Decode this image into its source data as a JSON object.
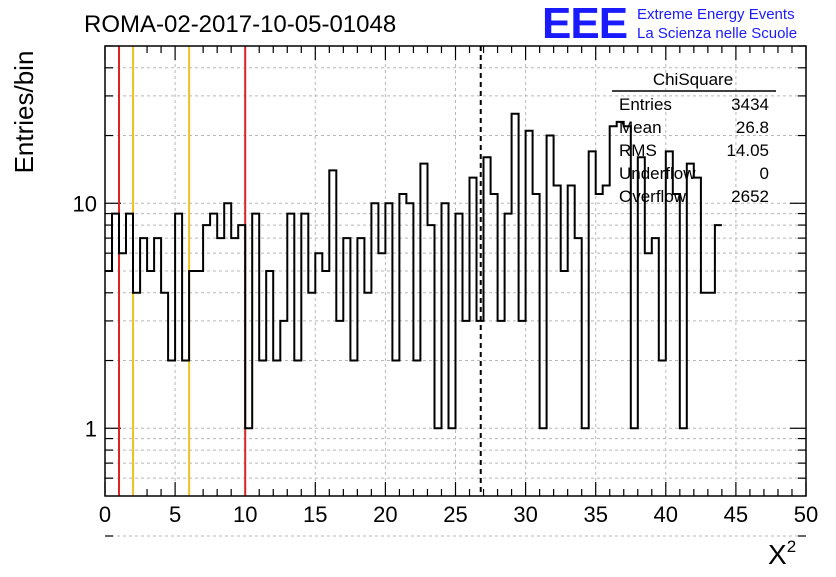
{
  "title": "ROMA-02-2017-10-05-01048",
  "logo": {
    "letters": "EEE",
    "line1": "Extreme Energy Events",
    "line2": "La Scienza nelle Scuole",
    "color": "#1a1aff"
  },
  "stats_box": {
    "title": "ChiSquare",
    "rows": [
      {
        "label": "Entries",
        "value": "3434"
      },
      {
        "label": "Mean",
        "value": "26.8"
      },
      {
        "label": "RMS",
        "value": "14.05"
      },
      {
        "label": "Underflow",
        "value": "0"
      },
      {
        "label": "Overflow",
        "value": "2652"
      }
    ]
  },
  "chart_data": {
    "type": "histogram",
    "title": "ROMA-02-2017-10-05-01048",
    "xlabel": "X",
    "xlabel_superscript": "2",
    "ylabel": "Entries/bin",
    "xlim": [
      0,
      50
    ],
    "ylim": [
      0.5,
      50
    ],
    "yscale": "log",
    "grid": true,
    "bin_width": 0.5,
    "x_ticks": [
      "0",
      "5",
      "10",
      "15",
      "20",
      "25",
      "30",
      "35",
      "40",
      "45",
      "50"
    ],
    "y_ticks": [
      "1",
      "10"
    ],
    "values": [
      5,
      9,
      6,
      9,
      4,
      7,
      5,
      7,
      4,
      2,
      9,
      2,
      5,
      5,
      8,
      9,
      7,
      10,
      7,
      8,
      1,
      9,
      2,
      5,
      2,
      3,
      9,
      2,
      9,
      4,
      6,
      5,
      14,
      3,
      7,
      2,
      7,
      4,
      10,
      6,
      10,
      2,
      11,
      10,
      2,
      15,
      8,
      1,
      10,
      1,
      9,
      3,
      13,
      3,
      16,
      11,
      3,
      9,
      25,
      3,
      21,
      11,
      1,
      20,
      12,
      5,
      12,
      7,
      1,
      17,
      11,
      12,
      22,
      23,
      22,
      1,
      16,
      6,
      7,
      2,
      17,
      11,
      1,
      15,
      13,
      4,
      4,
      8
    ],
    "series": [
      {
        "color": "#000000"
      }
    ],
    "vertical_lines": [
      {
        "x": 1,
        "color": "#dd2222",
        "style": "solid"
      },
      {
        "x": 2,
        "color": "#f0c020",
        "style": "solid"
      },
      {
        "x": 6,
        "color": "#f0c020",
        "style": "solid"
      },
      {
        "x": 10,
        "color": "#dd2222",
        "style": "solid"
      },
      {
        "x": 26.8,
        "color": "#000000",
        "style": "dashed"
      }
    ]
  }
}
